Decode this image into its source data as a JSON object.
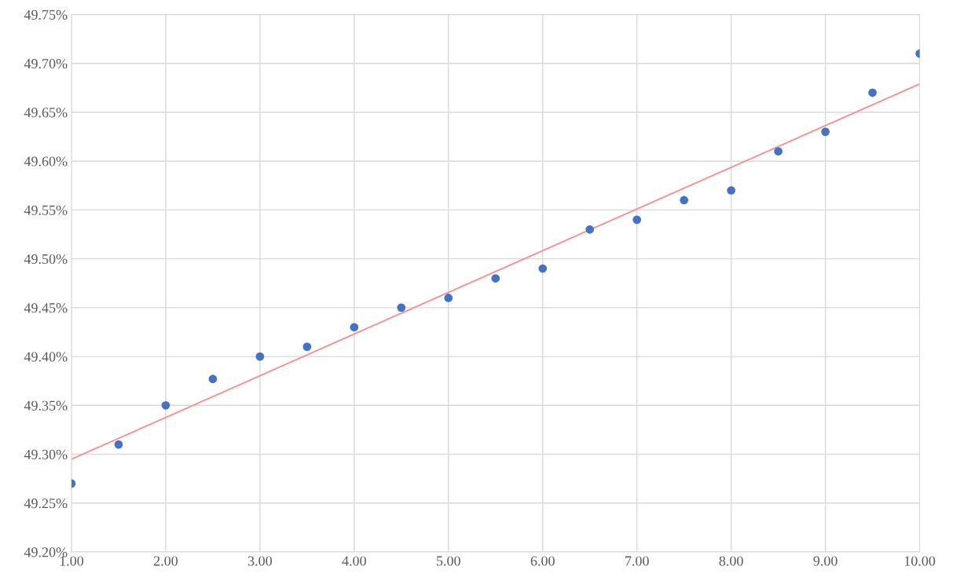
{
  "chart_data": {
    "type": "scatter",
    "x": [
      1.0,
      1.5,
      2.0,
      2.5,
      3.0,
      3.5,
      4.0,
      4.5,
      5.0,
      5.5,
      6.0,
      6.5,
      7.0,
      7.5,
      8.0,
      8.5,
      9.0,
      9.5,
      10.0
    ],
    "series": [
      {
        "type": "scatter",
        "color": "#4472c4",
        "marker": "circle",
        "values": [
          49.27,
          49.31,
          49.35,
          49.377,
          49.4,
          49.41,
          49.43,
          49.45,
          49.46,
          49.48,
          49.49,
          49.53,
          49.54,
          49.56,
          49.57,
          49.61,
          49.63,
          49.67,
          49.71
        ]
      },
      {
        "type": "line",
        "color": "#ff8a8a",
        "x": [
          1.0,
          10.0
        ],
        "values": [
          49.295,
          49.679
        ]
      }
    ],
    "xlim": [
      1.0,
      10.0
    ],
    "xticks": [
      {
        "value": 1,
        "label": "1.00"
      },
      {
        "value": 2,
        "label": "2.00"
      },
      {
        "value": 3,
        "label": "3.00"
      },
      {
        "value": 4,
        "label": "4.00"
      },
      {
        "value": 5,
        "label": "5.00"
      },
      {
        "value": 6,
        "label": "6.00"
      },
      {
        "value": 7,
        "label": "7.00"
      },
      {
        "value": 8,
        "label": "8.00"
      },
      {
        "value": 9,
        "label": "9.00"
      },
      {
        "value": 10,
        "label": "10.00"
      }
    ],
    "ylim": [
      49.2,
      49.75
    ],
    "yticks": [
      {
        "value": 49.2,
        "label": "49.20%"
      },
      {
        "value": 49.25,
        "label": "49.25%"
      },
      {
        "value": 49.3,
        "label": "49.30%"
      },
      {
        "value": 49.35,
        "label": "49.35%"
      },
      {
        "value": 49.4,
        "label": "49.40%"
      },
      {
        "value": 49.45,
        "label": "49.45%"
      },
      {
        "value": 49.5,
        "label": "49.50%"
      },
      {
        "value": 49.55,
        "label": "49.55%"
      },
      {
        "value": 49.6,
        "label": "49.60%"
      },
      {
        "value": 49.65,
        "label": "49.65%"
      },
      {
        "value": 49.7,
        "label": "49.70%"
      },
      {
        "value": 49.75,
        "label": "49.75%"
      }
    ],
    "grid": true
  }
}
